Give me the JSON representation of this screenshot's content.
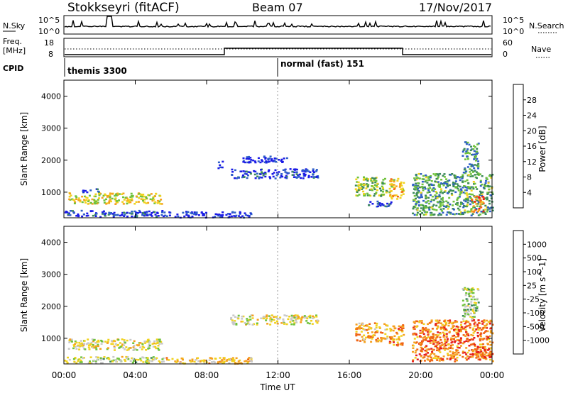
{
  "header": {
    "title": "Stokkseyri (fitACF)",
    "beam": "Beam 07",
    "date": "17/Nov/2017"
  },
  "top_panels": {
    "nsky_label": "N.Sky",
    "nsky_tick_hi": "10^5",
    "nsky_tick_lo": "10^0",
    "nsky_r_hi": "10^5",
    "nsky_r_lo": "10^0",
    "nsearch_label": "N.Search",
    "freq_label_1": "Freq.",
    "freq_label_2": "[MHz]",
    "freq_tick_hi": "18",
    "freq_tick_lo": "8",
    "nave_tick_hi": "60",
    "nave_tick_lo": "0",
    "nave_label": "Nave",
    "cpid_label": "CPID",
    "cpid_1": "themis 3300",
    "cpid_2": "normal (fast) 151"
  },
  "colors": {
    "power": [
      "#1a1ae6",
      "#2e5fc8",
      "#3c8a5a",
      "#6fc23c",
      "#f0d21e",
      "#f5a01e",
      "#f06414",
      "#e61e1e"
    ],
    "velocity": [
      "#e61e1e",
      "#f06414",
      "#f5a01e",
      "#f0d21e",
      "#c8c8c8",
      "#6fc23c",
      "#3c8a5a",
      "#2e5fc8",
      "#1a1ae6"
    ]
  },
  "chart_data": [
    {
      "type": "heatmap",
      "name": "power",
      "title": "",
      "xlabel": "Time UT",
      "ylabel": "Slant Range [km]",
      "x_ticks": [
        "00:00",
        "04:00",
        "08:00",
        "12:00",
        "16:00",
        "20:00",
        "00:00"
      ],
      "xlim_hours": [
        0,
        24
      ],
      "y_ticks": [
        "1000",
        "2000",
        "3000",
        "4000"
      ],
      "ylim_km": [
        200,
        4500
      ],
      "colorbar_label": "Power [dB]",
      "colorbar_ticks": [
        "4",
        "8",
        "12",
        "16",
        "20",
        "24",
        "28"
      ],
      "regions": [
        {
          "t0": 0.0,
          "t1": 5.6,
          "r0": 250,
          "r1": 450,
          "level": 0.12
        },
        {
          "t0": 0.2,
          "t1": 5.5,
          "r0": 650,
          "r1": 1000,
          "level": 0.55
        },
        {
          "t0": 1.0,
          "t1": 2.0,
          "r0": 1000,
          "r1": 1150,
          "level": 0.2
        },
        {
          "t0": 5.5,
          "t1": 10.5,
          "r0": 230,
          "r1": 420,
          "level": 0.08
        },
        {
          "t0": 9.3,
          "t1": 14.2,
          "r0": 1450,
          "r1": 1750,
          "level": 0.12
        },
        {
          "t0": 8.6,
          "t1": 8.9,
          "r0": 1750,
          "r1": 2000,
          "level": 0.1
        },
        {
          "t0": 10.0,
          "t1": 12.5,
          "r0": 1950,
          "r1": 2150,
          "level": 0.05
        },
        {
          "t0": 16.3,
          "t1": 18.1,
          "r0": 900,
          "r1": 1500,
          "level": 0.45
        },
        {
          "t0": 18.2,
          "t1": 19.0,
          "r0": 800,
          "r1": 1450,
          "level": 0.65
        },
        {
          "t0": 17.0,
          "t1": 18.3,
          "r0": 550,
          "r1": 750,
          "level": 0.15
        },
        {
          "t0": 19.5,
          "t1": 24.0,
          "r0": 300,
          "r1": 1600,
          "level": 0.35
        },
        {
          "t0": 22.3,
          "t1": 23.2,
          "r0": 1600,
          "r1": 2600,
          "level": 0.3
        },
        {
          "t0": 22.8,
          "t1": 23.5,
          "r0": 400,
          "r1": 900,
          "level": 0.8
        }
      ]
    },
    {
      "type": "heatmap",
      "name": "velocity",
      "title": "",
      "xlabel": "Time UT",
      "ylabel": "Slant Range [km]",
      "x_ticks": [
        "00:00",
        "04:00",
        "08:00",
        "12:00",
        "16:00",
        "20:00",
        "00:00"
      ],
      "xlim_hours": [
        0,
        24
      ],
      "y_ticks": [
        "1000",
        "2000",
        "3000",
        "4000"
      ],
      "ylim_km": [
        200,
        4500
      ],
      "colorbar_label": "Velocity [m s^-1]",
      "colorbar_ticks": [
        "1000",
        "500",
        "100",
        "25",
        "-25",
        "-100",
        "-500",
        "-1000"
      ],
      "regions": [
        {
          "t0": 0.0,
          "t1": 5.6,
          "r0": 250,
          "r1": 450,
          "level": 0.5
        },
        {
          "t0": 0.2,
          "t1": 5.5,
          "r0": 650,
          "r1": 1000,
          "level": 0.45
        },
        {
          "t0": 5.5,
          "t1": 10.5,
          "r0": 230,
          "r1": 420,
          "level": 0.35
        },
        {
          "t0": 9.3,
          "t1": 14.2,
          "r0": 1450,
          "r1": 1750,
          "level": 0.45
        },
        {
          "t0": 16.3,
          "t1": 18.1,
          "r0": 900,
          "r1": 1500,
          "level": 0.3
        },
        {
          "t0": 18.2,
          "t1": 19.0,
          "r0": 800,
          "r1": 1450,
          "level": 0.25
        },
        {
          "t0": 19.5,
          "t1": 24.0,
          "r0": 300,
          "r1": 1600,
          "level": 0.2
        },
        {
          "t0": 22.3,
          "t1": 23.2,
          "r0": 1600,
          "r1": 2600,
          "level": 0.55
        },
        {
          "t0": 22.8,
          "t1": 24.0,
          "r0": 350,
          "r1": 700,
          "level": 0.15
        }
      ]
    }
  ]
}
